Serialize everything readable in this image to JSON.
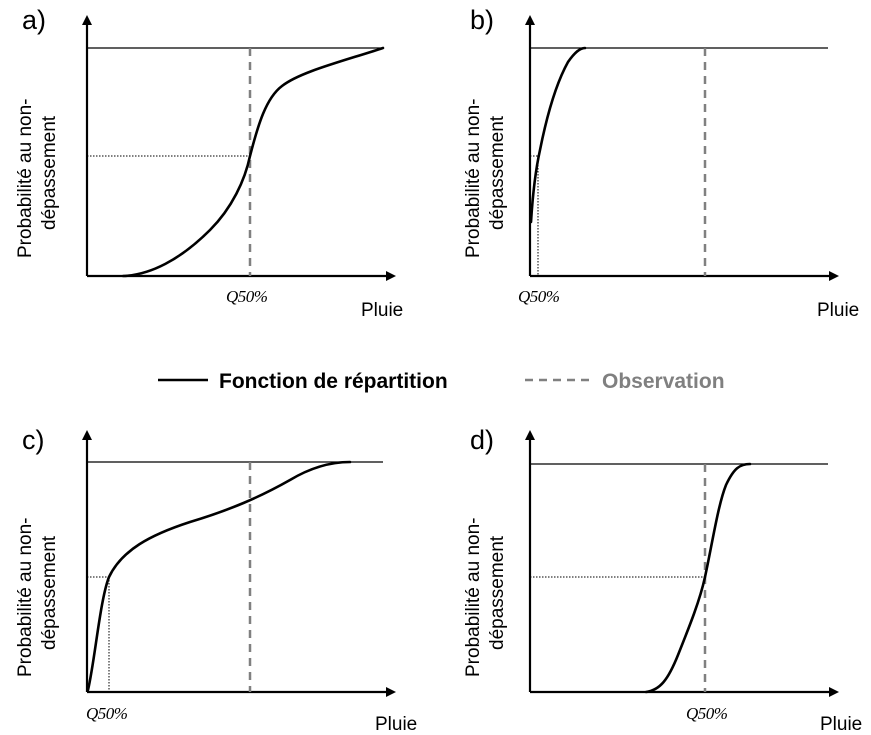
{
  "legend": {
    "cdf_label": "Fonction de répartition",
    "obs_label": "Observation",
    "cdf_color": "#000000",
    "obs_color": "#808080"
  },
  "panels": [
    {
      "letter": "a)",
      "ylabel_line1": "Probabilité au non-",
      "ylabel_line2": "dépassement",
      "xlabel": "Pluie",
      "q_label": "Q50%"
    },
    {
      "letter": "b)",
      "ylabel_line1": "Probabilité au non-",
      "ylabel_line2": "dépassement",
      "xlabel": "Pluie",
      "q_label": "Q50%"
    },
    {
      "letter": "c)",
      "ylabel_line1": "Probabilité au non-",
      "ylabel_line2": "dépassement",
      "xlabel": "Pluie",
      "q_label": "Q50%"
    },
    {
      "letter": "d)",
      "ylabel_line1": "Probabilité au non-",
      "ylabel_line2": "dépassement",
      "xlabel": "Pluie",
      "q_label": "Q50%"
    }
  ]
}
